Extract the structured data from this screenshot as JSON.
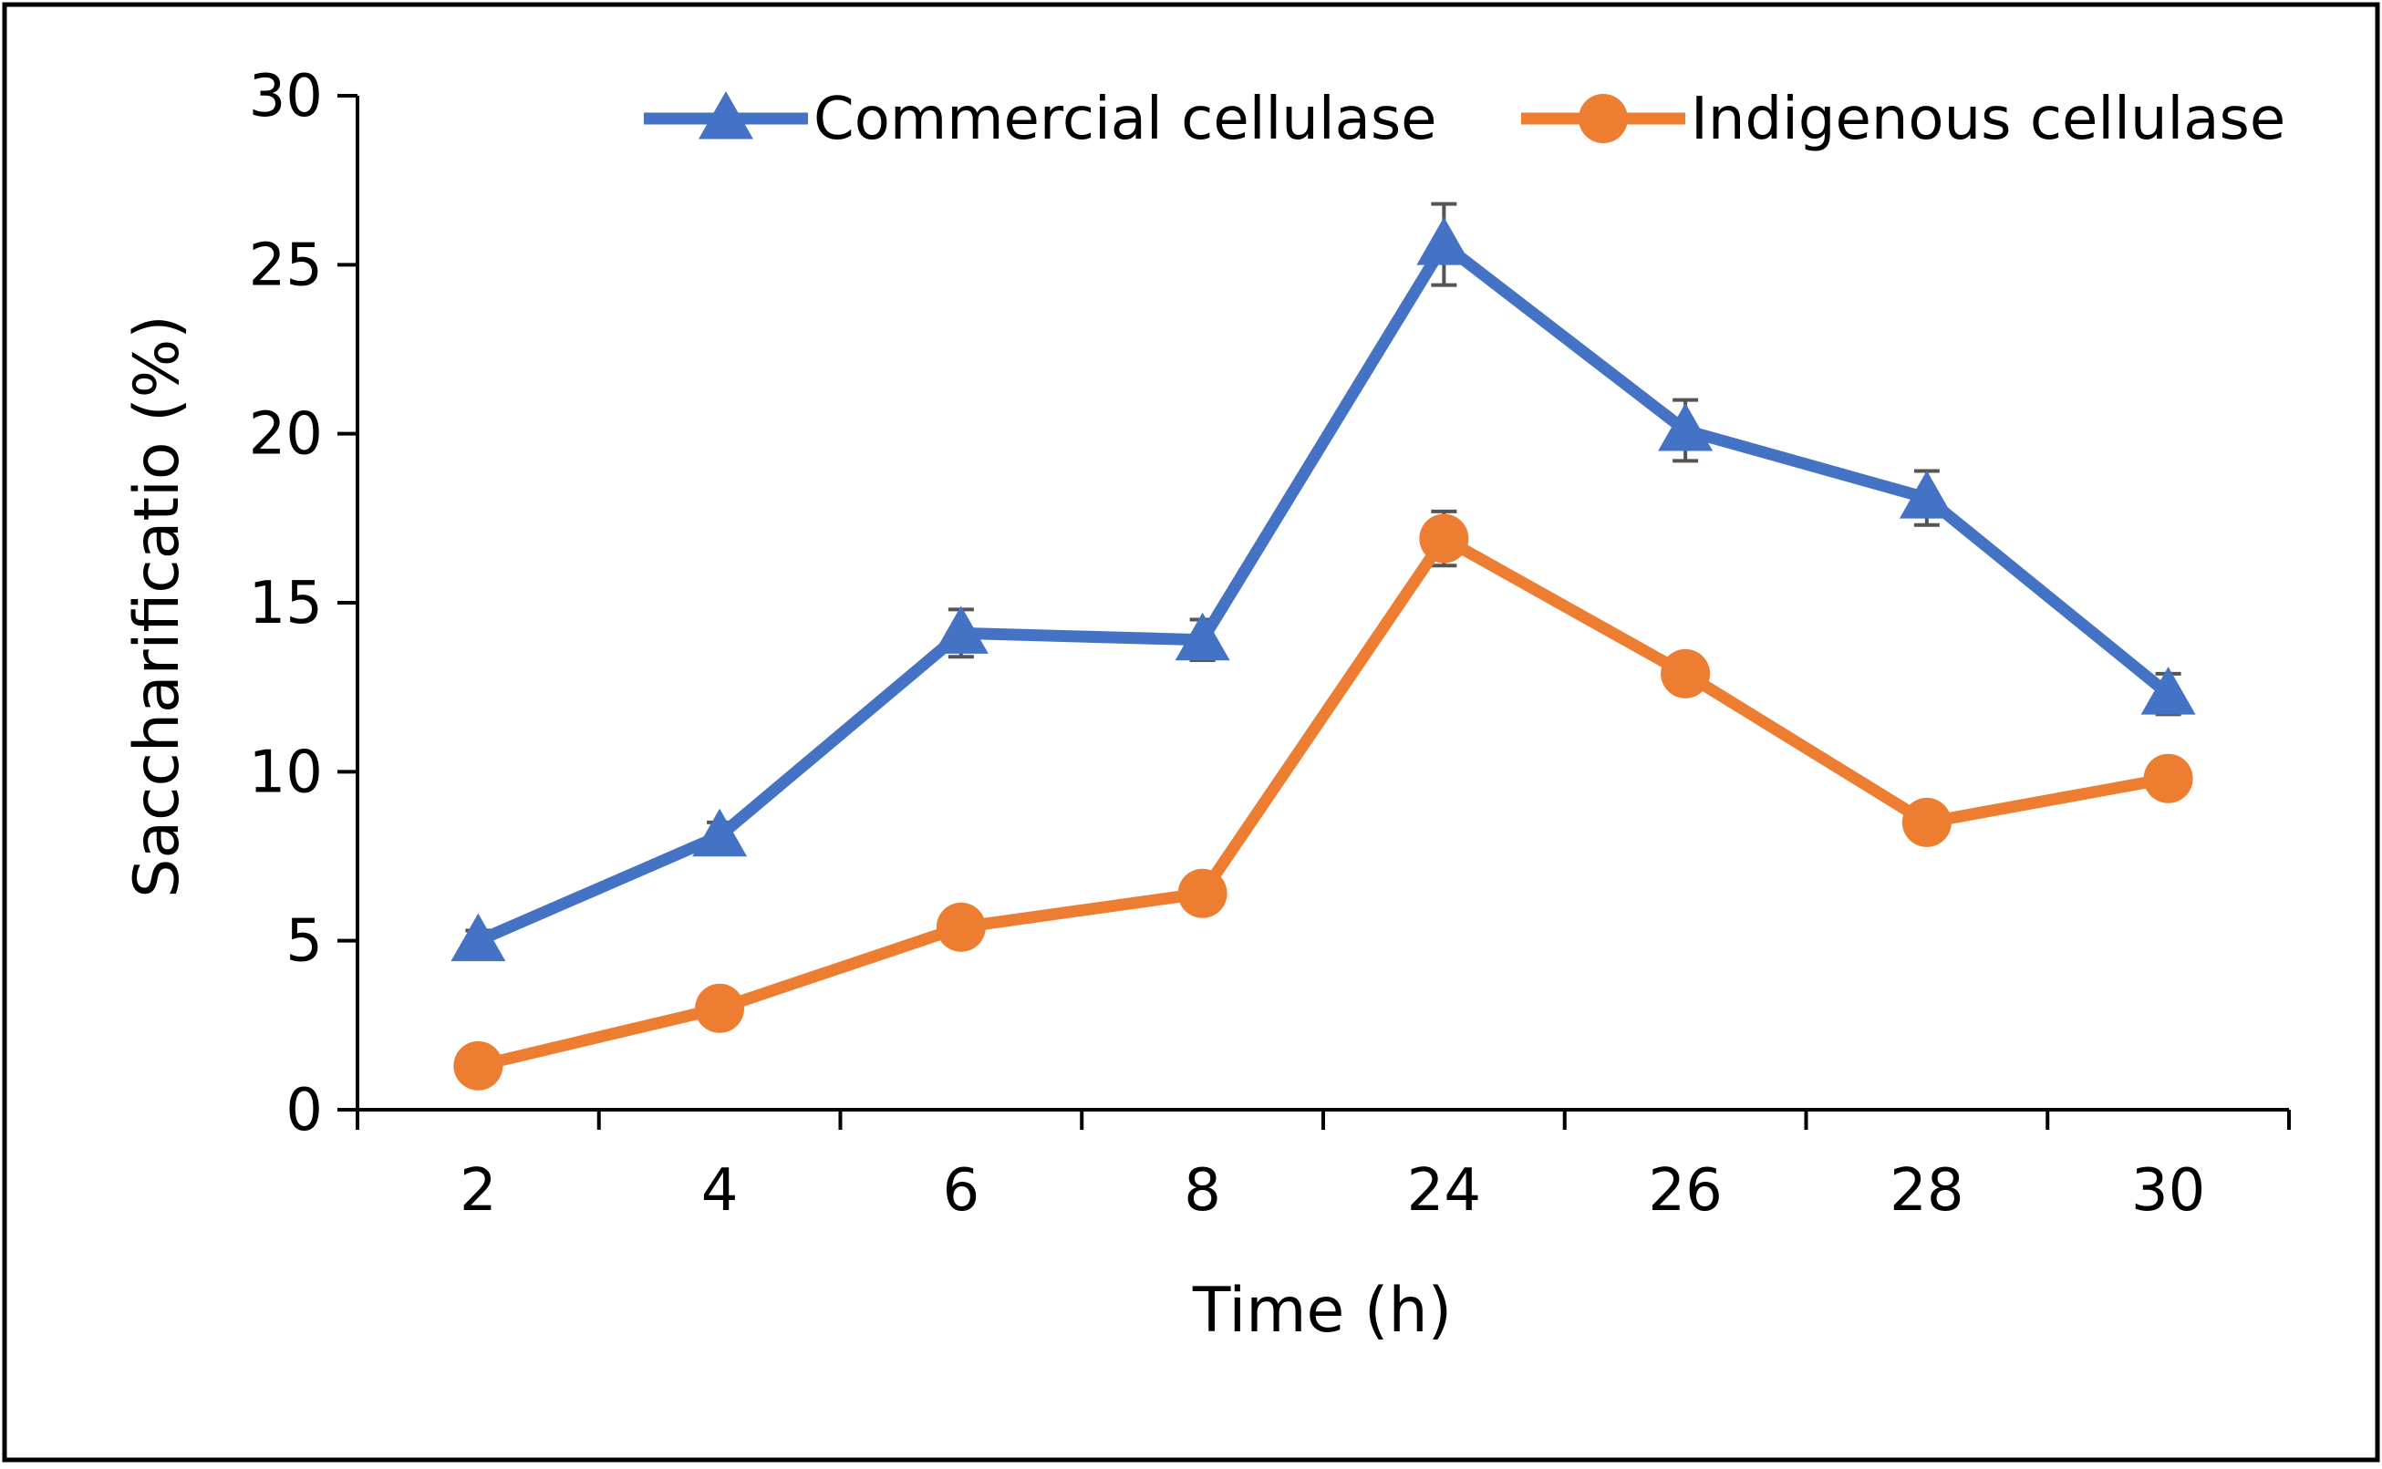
{
  "chart_data": {
    "type": "line",
    "title": "",
    "xlabel": "Time (h)",
    "ylabel": "Saccharificatio (%)",
    "categories": [
      "2",
      "4",
      "6",
      "8",
      "24",
      "26",
      "28",
      "30"
    ],
    "ylim": [
      0,
      30
    ],
    "yticks": [
      0,
      5,
      10,
      15,
      20,
      25,
      30
    ],
    "grid": false,
    "legend_position": "top",
    "series": [
      {
        "name": "Commercial cellulase",
        "color": "#4472C4",
        "marker": "triangle",
        "values": [
          5.0,
          8.1,
          14.1,
          13.9,
          25.6,
          20.1,
          18.1,
          12.3
        ],
        "errors": [
          0.3,
          0.4,
          0.7,
          0.6,
          1.2,
          0.9,
          0.8,
          0.6
        ]
      },
      {
        "name": "Indigenous cellulase",
        "color": "#ED7D31",
        "marker": "circle",
        "values": [
          1.3,
          3.0,
          5.4,
          6.4,
          16.9,
          12.9,
          8.5,
          9.8
        ],
        "errors": [
          0.1,
          0.2,
          0.2,
          0.2,
          0.8,
          0.5,
          0.3,
          0.2
        ]
      }
    ]
  }
}
